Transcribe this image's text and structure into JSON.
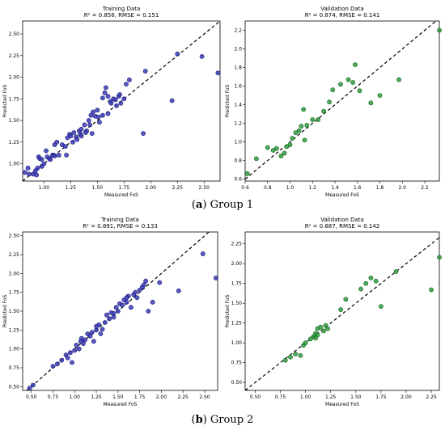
{
  "captions": [
    {
      "letter": "a",
      "text": "Group 1"
    },
    {
      "letter": "b",
      "text": "Group 2"
    }
  ],
  "colors": {
    "training_fill": "#3b3bb8",
    "training_edge": "#1a1a7a",
    "validation_fill": "#2e9e3e",
    "validation_edge": "#14621e",
    "identity_line": "#000000"
  },
  "chart_data": [
    {
      "type": "scatter",
      "group": "Group 1",
      "title": "Training Data",
      "subtitle": "R² = 0.856, RMSE = 0.151",
      "xlabel": "Measured FoS",
      "ylabel": "Predicted FoS",
      "xlim": [
        0.8,
        2.65
      ],
      "ylim": [
        0.8,
        2.65
      ],
      "xticks": [
        "1.00",
        "1.25",
        "1.50",
        "1.75",
        "2.00",
        "2.25",
        "2.50"
      ],
      "xtick_values": [
        1.0,
        1.25,
        1.5,
        1.75,
        2.0,
        2.25,
        2.5
      ],
      "yticks": [
        "1.00",
        "1.25",
        "1.50",
        "1.75",
        "2.00",
        "2.25",
        "2.50"
      ],
      "ytick_values": [
        1.0,
        1.25,
        1.5,
        1.75,
        2.0,
        2.25,
        2.5
      ],
      "color": "training",
      "reference_line": "y = x",
      "points": [
        [
          0.82,
          0.9
        ],
        [
          0.85,
          0.95
        ],
        [
          0.86,
          0.88
        ],
        [
          0.9,
          0.88
        ],
        [
          0.92,
          0.92
        ],
        [
          0.93,
          0.87
        ],
        [
          0.94,
          0.95
        ],
        [
          0.95,
          1.08
        ],
        [
          0.96,
          1.06
        ],
        [
          0.98,
          1.05
        ],
        [
          0.98,
          0.97
        ],
        [
          1.0,
          1.0
        ],
        [
          1.02,
          1.15
        ],
        [
          1.03,
          1.08
        ],
        [
          1.05,
          1.06
        ],
        [
          1.06,
          1.05
        ],
        [
          1.08,
          1.1
        ],
        [
          1.09,
          1.1
        ],
        [
          1.1,
          1.22
        ],
        [
          1.1,
          1.09
        ],
        [
          1.12,
          1.25
        ],
        [
          1.14,
          1.1
        ],
        [
          1.17,
          1.22
        ],
        [
          1.2,
          1.2
        ],
        [
          1.21,
          1.1
        ],
        [
          1.22,
          1.3
        ],
        [
          1.24,
          1.34
        ],
        [
          1.25,
          1.32
        ],
        [
          1.27,
          1.25
        ],
        [
          1.28,
          1.36
        ],
        [
          1.3,
          1.31
        ],
        [
          1.31,
          1.28
        ],
        [
          1.33,
          1.38
        ],
        [
          1.34,
          1.34
        ],
        [
          1.35,
          1.4
        ],
        [
          1.38,
          1.45
        ],
        [
          1.39,
          1.36
        ],
        [
          1.4,
          1.38
        ],
        [
          1.42,
          1.5
        ],
        [
          1.43,
          1.45
        ],
        [
          1.44,
          1.56
        ],
        [
          1.46,
          1.6
        ],
        [
          1.48,
          1.55
        ],
        [
          1.5,
          1.62
        ],
        [
          1.51,
          1.54
        ],
        [
          1.52,
          1.48
        ],
        [
          1.55,
          1.56
        ],
        [
          1.55,
          1.76
        ],
        [
          1.57,
          1.82
        ],
        [
          1.58,
          1.88
        ],
        [
          1.6,
          1.78
        ],
        [
          1.62,
          1.72
        ],
        [
          1.63,
          1.7
        ],
        [
          1.65,
          1.75
        ],
        [
          1.67,
          1.74
        ],
        [
          1.68,
          1.67
        ],
        [
          1.7,
          1.78
        ],
        [
          1.71,
          1.8
        ],
        [
          1.72,
          1.7
        ],
        [
          1.75,
          1.75
        ],
        [
          1.77,
          1.92
        ],
        [
          1.8,
          1.97
        ],
        [
          1.93,
          1.35
        ],
        [
          1.95,
          2.07
        ],
        [
          2.2,
          1.73
        ],
        [
          2.25,
          2.27
        ],
        [
          2.48,
          2.24
        ],
        [
          2.63,
          2.05
        ],
        [
          1.45,
          1.35
        ],
        [
          1.35,
          1.32
        ],
        [
          1.6,
          1.58
        ]
      ]
    },
    {
      "type": "scatter",
      "group": "Group 1",
      "title": "Validation Data",
      "subtitle": "R² = 0.874, RMSE = 0.141",
      "xlabel": "Measured FoS",
      "ylabel": "Predicted FoS",
      "xlim": [
        0.6,
        2.33
      ],
      "ylim": [
        0.58,
        2.3
      ],
      "xticks": [
        "0.6",
        "0.8",
        "1.0",
        "1.2",
        "1.4",
        "1.6",
        "1.8",
        "2.0",
        "2.2"
      ],
      "xtick_values": [
        0.6,
        0.8,
        1.0,
        1.2,
        1.4,
        1.6,
        1.8,
        2.0,
        2.2
      ],
      "yticks": [
        "0.6",
        "0.8",
        "1.0",
        "1.2",
        "1.4",
        "1.6",
        "1.8",
        "2.0",
        "2.2"
      ],
      "ytick_values": [
        0.6,
        0.8,
        1.0,
        1.2,
        1.4,
        1.6,
        1.8,
        2.0,
        2.2
      ],
      "color": "validation",
      "reference_line": "y = x",
      "points": [
        [
          0.62,
          0.66
        ],
        [
          0.7,
          0.82
        ],
        [
          0.8,
          0.94
        ],
        [
          0.85,
          0.91
        ],
        [
          0.88,
          0.93
        ],
        [
          0.92,
          0.85
        ],
        [
          0.95,
          0.88
        ],
        [
          0.97,
          0.95
        ],
        [
          1.02,
          1.04
        ],
        [
          1.05,
          1.1
        ],
        [
          1.08,
          1.12
        ],
        [
          1.1,
          1.17
        ],
        [
          1.12,
          1.35
        ],
        [
          1.15,
          1.18
        ],
        [
          1.2,
          1.24
        ],
        [
          1.25,
          1.24
        ],
        [
          1.3,
          1.33
        ],
        [
          1.35,
          1.43
        ],
        [
          1.38,
          1.56
        ],
        [
          1.45,
          1.62
        ],
        [
          1.52,
          1.67
        ],
        [
          1.56,
          1.64
        ],
        [
          1.58,
          1.83
        ],
        [
          1.62,
          1.55
        ],
        [
          1.72,
          1.42
        ],
        [
          1.8,
          1.5
        ],
        [
          1.97,
          1.67
        ],
        [
          2.33,
          2.2
        ],
        [
          1.0,
          0.97
        ],
        [
          1.13,
          1.02
        ]
      ]
    },
    {
      "type": "scatter",
      "group": "Group 2",
      "title": "Training Data",
      "subtitle": "R² = 0.891, RMSE = 0.133",
      "xlabel": "Measured FoS",
      "ylabel": "Predicted FoS",
      "xlim": [
        0.4,
        2.65
      ],
      "ylim": [
        0.45,
        2.55
      ],
      "xticks": [
        "0.50",
        "0.75",
        "1.00",
        "1.25",
        "1.50",
        "1.75",
        "2.00",
        "2.25",
        "2.50"
      ],
      "xtick_values": [
        0.5,
        0.75,
        1.0,
        1.25,
        1.5,
        1.75,
        2.0,
        2.25,
        2.5
      ],
      "yticks": [
        "0.50",
        "0.75",
        "1.00",
        "1.25",
        "1.50",
        "1.75",
        "2.00",
        "2.25",
        "2.50"
      ],
      "ytick_values": [
        0.5,
        0.75,
        1.0,
        1.25,
        1.5,
        1.75,
        2.0,
        2.25,
        2.5
      ],
      "color": "training",
      "reference_line": "y = x",
      "points": [
        [
          0.48,
          0.48
        ],
        [
          0.52,
          0.52
        ],
        [
          0.75,
          0.77
        ],
        [
          0.8,
          0.8
        ],
        [
          0.85,
          0.85
        ],
        [
          0.9,
          0.92
        ],
        [
          0.92,
          0.88
        ],
        [
          0.95,
          0.95
        ],
        [
          0.97,
          0.82
        ],
        [
          1.0,
          0.98
        ],
        [
          1.02,
          1.05
        ],
        [
          1.05,
          1.0
        ],
        [
          1.07,
          1.1
        ],
        [
          1.08,
          1.14
        ],
        [
          1.1,
          1.07
        ],
        [
          1.12,
          1.12
        ],
        [
          1.15,
          1.2
        ],
        [
          1.18,
          1.17
        ],
        [
          1.2,
          1.22
        ],
        [
          1.22,
          1.1
        ],
        [
          1.25,
          1.25
        ],
        [
          1.28,
          1.32
        ],
        [
          1.3,
          1.2
        ],
        [
          1.32,
          1.26
        ],
        [
          1.35,
          1.35
        ],
        [
          1.37,
          1.45
        ],
        [
          1.4,
          1.4
        ],
        [
          1.42,
          1.48
        ],
        [
          1.45,
          1.42
        ],
        [
          1.48,
          1.55
        ],
        [
          1.5,
          1.5
        ],
        [
          1.52,
          1.6
        ],
        [
          1.55,
          1.58
        ],
        [
          1.57,
          1.65
        ],
        [
          1.6,
          1.62
        ],
        [
          1.62,
          1.7
        ],
        [
          1.65,
          1.55
        ],
        [
          1.68,
          1.72
        ],
        [
          1.7,
          1.75
        ],
        [
          1.72,
          1.68
        ],
        [
          1.75,
          1.78
        ],
        [
          1.78,
          1.82
        ],
        [
          1.8,
          1.85
        ],
        [
          1.82,
          1.9
        ],
        [
          1.85,
          1.5
        ],
        [
          1.9,
          1.62
        ],
        [
          1.98,
          1.88
        ],
        [
          2.2,
          1.77
        ],
        [
          2.48,
          2.26
        ],
        [
          2.63,
          1.94
        ],
        [
          1.6,
          1.68
        ],
        [
          1.45,
          1.47
        ],
        [
          1.25,
          1.3
        ]
      ]
    },
    {
      "type": "scatter",
      "group": "Group 2",
      "title": "Validation Data",
      "subtitle": "R² = 0.887, RMSE = 0.142",
      "xlabel": "Measured FoS",
      "ylabel": "Predicted FoS",
      "xlim": [
        0.4,
        2.33
      ],
      "ylim": [
        0.4,
        2.4
      ],
      "xticks": [
        "0.50",
        "0.75",
        "1.00",
        "1.25",
        "1.50",
        "1.75",
        "2.00",
        "2.25"
      ],
      "xtick_values": [
        0.5,
        0.75,
        1.0,
        1.25,
        1.5,
        1.75,
        2.0,
        2.25
      ],
      "yticks": [
        "0.50",
        "0.75",
        "1.00",
        "1.25",
        "1.50",
        "1.75",
        "2.00",
        "2.25"
      ],
      "ytick_values": [
        0.5,
        0.75,
        1.0,
        1.25,
        1.5,
        1.75,
        2.0,
        2.25
      ],
      "color": "validation",
      "reference_line": "y = x",
      "points": [
        [
          0.8,
          0.78
        ],
        [
          0.85,
          0.82
        ],
        [
          0.9,
          0.86
        ],
        [
          0.95,
          0.84
        ],
        [
          0.98,
          0.97
        ],
        [
          1.0,
          1.0
        ],
        [
          1.05,
          1.05
        ],
        [
          1.08,
          1.08
        ],
        [
          1.1,
          1.12
        ],
        [
          1.12,
          1.18
        ],
        [
          1.15,
          1.2
        ],
        [
          1.18,
          1.15
        ],
        [
          1.2,
          1.22
        ],
        [
          1.22,
          1.18
        ],
        [
          1.35,
          1.42
        ],
        [
          1.4,
          1.55
        ],
        [
          1.55,
          1.68
        ],
        [
          1.6,
          1.75
        ],
        [
          1.65,
          1.82
        ],
        [
          1.7,
          1.78
        ],
        [
          1.75,
          1.46
        ],
        [
          1.9,
          1.9
        ],
        [
          2.25,
          1.67
        ],
        [
          2.33,
          2.08
        ],
        [
          1.1,
          1.06
        ],
        [
          1.12,
          1.1
        ]
      ]
    }
  ]
}
